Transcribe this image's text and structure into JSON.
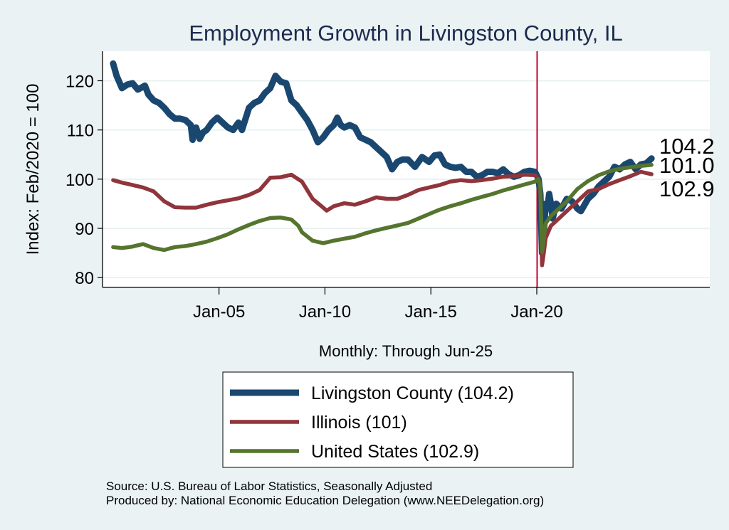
{
  "chart_data": {
    "type": "line",
    "title": "Employment Growth in Livingston  County, IL",
    "xlabel": "Monthly: Through Jun-25",
    "ylabel": "Index: Feb/2020 = 100",
    "ylim": [
      78,
      126
    ],
    "xlim": [
      "1999-07",
      "2028-03"
    ],
    "yticks": [
      80,
      90,
      100,
      110,
      120
    ],
    "xticks": [
      {
        "date": "2005-01",
        "label": "Jan-05"
      },
      {
        "date": "2010-01",
        "label": "Jan-10"
      },
      {
        "date": "2015-01",
        "label": "Jan-15"
      },
      {
        "date": "2020-01",
        "label": "Jan-20"
      }
    ],
    "grid": "horizontal",
    "reference_line": {
      "date": "2020-02",
      "color": "#c10534"
    },
    "legend_position": "bottom",
    "series": [
      {
        "name": "Livingston  County (104.2)",
        "color": "#1a476f",
        "end_label": "104.2",
        "points": [
          [
            "2000-01",
            123.5
          ],
          [
            "2000-03",
            121
          ],
          [
            "2000-06",
            118.5
          ],
          [
            "2000-09",
            119.2
          ],
          [
            "2000-12",
            119.5
          ],
          [
            "2001-03",
            118.2
          ],
          [
            "2001-07",
            119
          ],
          [
            "2001-09",
            117.2
          ],
          [
            "2001-12",
            116
          ],
          [
            "2002-03",
            115.5
          ],
          [
            "2002-06",
            114.5
          ],
          [
            "2002-09",
            113.2
          ],
          [
            "2002-12",
            112.3
          ],
          [
            "2003-03",
            112.3
          ],
          [
            "2003-06",
            112
          ],
          [
            "2003-09",
            111
          ],
          [
            "2003-10",
            108
          ],
          [
            "2003-11",
            110.2
          ],
          [
            "2003-12",
            110.5
          ],
          [
            "2004-02",
            108.2
          ],
          [
            "2004-04",
            109.5
          ],
          [
            "2004-06",
            110
          ],
          [
            "2004-09",
            111.5
          ],
          [
            "2004-12",
            112.5
          ],
          [
            "2005-03",
            111.5
          ],
          [
            "2005-06",
            110.5
          ],
          [
            "2005-09",
            110
          ],
          [
            "2005-12",
            111.5
          ],
          [
            "2006-02",
            110
          ],
          [
            "2006-06",
            114.5
          ],
          [
            "2006-09",
            115.5
          ],
          [
            "2006-12",
            116
          ],
          [
            "2007-03",
            117.5
          ],
          [
            "2007-06",
            118.5
          ],
          [
            "2007-09",
            121
          ],
          [
            "2007-12",
            119.8
          ],
          [
            "2008-03",
            119.5
          ],
          [
            "2008-06",
            116
          ],
          [
            "2008-09",
            115
          ],
          [
            "2008-12",
            113.5
          ],
          [
            "2009-03",
            112
          ],
          [
            "2009-06",
            110
          ],
          [
            "2009-09",
            107.5
          ],
          [
            "2009-12",
            108.5
          ],
          [
            "2010-03",
            110
          ],
          [
            "2010-06",
            111
          ],
          [
            "2010-08",
            112.5
          ],
          [
            "2010-10",
            111
          ],
          [
            "2010-12",
            110.5
          ],
          [
            "2011-03",
            111
          ],
          [
            "2011-06",
            110.5
          ],
          [
            "2011-09",
            108.5
          ],
          [
            "2011-12",
            108
          ],
          [
            "2012-03",
            107.5
          ],
          [
            "2012-06",
            106.5
          ],
          [
            "2012-09",
            105.5
          ],
          [
            "2012-12",
            104.5
          ],
          [
            "2013-03",
            102
          ],
          [
            "2013-06",
            103.5
          ],
          [
            "2013-09",
            104
          ],
          [
            "2013-12",
            104
          ],
          [
            "2014-04",
            102.5
          ],
          [
            "2014-08",
            104.5
          ],
          [
            "2014-12",
            103.5
          ],
          [
            "2015-03",
            104.8
          ],
          [
            "2015-06",
            105
          ],
          [
            "2015-09",
            103
          ],
          [
            "2015-12",
            102.5
          ],
          [
            "2016-03",
            102.3
          ],
          [
            "2016-06",
            102.5
          ],
          [
            "2016-09",
            101.5
          ],
          [
            "2016-12",
            101.5
          ],
          [
            "2017-03",
            100.5
          ],
          [
            "2017-06",
            100.8
          ],
          [
            "2017-09",
            101.5
          ],
          [
            "2017-12",
            101.5
          ],
          [
            "2018-03",
            101.2
          ],
          [
            "2018-06",
            102
          ],
          [
            "2018-09",
            101
          ],
          [
            "2018-12",
            100.5
          ],
          [
            "2019-03",
            100.8
          ],
          [
            "2019-06",
            101.5
          ],
          [
            "2019-09",
            101.7
          ],
          [
            "2019-12",
            101.5
          ],
          [
            "2020-02",
            100
          ],
          [
            "2020-03",
            97
          ],
          [
            "2020-04",
            85
          ],
          [
            "2020-05",
            89
          ],
          [
            "2020-06",
            95
          ],
          [
            "2020-07",
            94
          ],
          [
            "2020-08",
            97
          ],
          [
            "2020-09",
            95
          ],
          [
            "2020-10",
            92
          ],
          [
            "2020-12",
            95
          ],
          [
            "2021-03",
            94
          ],
          [
            "2021-06",
            96
          ],
          [
            "2021-09",
            95.5
          ],
          [
            "2021-12",
            94
          ],
          [
            "2022-02",
            93.5
          ],
          [
            "2022-06",
            96
          ],
          [
            "2022-09",
            97
          ],
          [
            "2022-12",
            98.5
          ],
          [
            "2023-03",
            99.5
          ],
          [
            "2023-06",
            100.5
          ],
          [
            "2023-09",
            102.5
          ],
          [
            "2023-12",
            102
          ],
          [
            "2024-03",
            103
          ],
          [
            "2024-06",
            103.5
          ],
          [
            "2024-09",
            102
          ],
          [
            "2024-12",
            103
          ],
          [
            "2025-03",
            103.2
          ],
          [
            "2025-06",
            104.2
          ]
        ]
      },
      {
        "name": "Illinois (101)",
        "color": "#90353b",
        "end_label": "101.0",
        "points": [
          [
            "2000-01",
            99.8
          ],
          [
            "2000-06",
            99.3
          ],
          [
            "2000-12",
            98.8
          ],
          [
            "2001-06",
            98.3
          ],
          [
            "2001-12",
            97.5
          ],
          [
            "2002-06",
            95.5
          ],
          [
            "2002-12",
            94.3
          ],
          [
            "2003-06",
            94.2
          ],
          [
            "2003-12",
            94.2
          ],
          [
            "2004-06",
            94.8
          ],
          [
            "2004-12",
            95.3
          ],
          [
            "2005-06",
            95.7
          ],
          [
            "2005-12",
            96.1
          ],
          [
            "2006-06",
            96.8
          ],
          [
            "2006-12",
            97.8
          ],
          [
            "2007-06",
            100.3
          ],
          [
            "2007-12",
            100.4
          ],
          [
            "2008-06",
            100.9
          ],
          [
            "2008-12",
            99.5
          ],
          [
            "2009-06",
            96
          ],
          [
            "2009-12",
            94.2
          ],
          [
            "2010-02",
            93.6
          ],
          [
            "2010-06",
            94.5
          ],
          [
            "2010-12",
            95.1
          ],
          [
            "2011-06",
            94.8
          ],
          [
            "2011-12",
            95.5
          ],
          [
            "2012-06",
            96.3
          ],
          [
            "2012-12",
            96
          ],
          [
            "2013-06",
            96
          ],
          [
            "2013-12",
            96.8
          ],
          [
            "2014-06",
            97.8
          ],
          [
            "2014-12",
            98.3
          ],
          [
            "2015-06",
            98.8
          ],
          [
            "2015-12",
            99.5
          ],
          [
            "2016-06",
            99.8
          ],
          [
            "2016-12",
            99.6
          ],
          [
            "2017-06",
            99.8
          ],
          [
            "2017-12",
            100.1
          ],
          [
            "2018-06",
            100.5
          ],
          [
            "2018-12",
            100.6
          ],
          [
            "2019-06",
            100.9
          ],
          [
            "2019-12",
            100.8
          ],
          [
            "2020-02",
            100
          ],
          [
            "2020-03",
            97
          ],
          [
            "2020-04",
            82.5
          ],
          [
            "2020-05",
            85
          ],
          [
            "2020-06",
            88
          ],
          [
            "2020-09",
            90.5
          ],
          [
            "2020-12",
            91.5
          ],
          [
            "2021-06",
            93.5
          ],
          [
            "2021-12",
            95.5
          ],
          [
            "2022-06",
            97.5
          ],
          [
            "2022-12",
            98
          ],
          [
            "2023-06",
            99
          ],
          [
            "2023-12",
            99.8
          ],
          [
            "2024-06",
            100.6
          ],
          [
            "2024-12",
            101.5
          ],
          [
            "2025-06",
            101.0
          ]
        ]
      },
      {
        "name": "United States (102.9)",
        "color": "#55752f",
        "end_label": "102.9",
        "points": [
          [
            "2000-01",
            86.2
          ],
          [
            "2000-06",
            86
          ],
          [
            "2000-12",
            86.3
          ],
          [
            "2001-06",
            86.8
          ],
          [
            "2001-12",
            86
          ],
          [
            "2002-06",
            85.6
          ],
          [
            "2002-12",
            86.2
          ],
          [
            "2003-06",
            86.4
          ],
          [
            "2003-12",
            86.8
          ],
          [
            "2004-06",
            87.3
          ],
          [
            "2004-12",
            88
          ],
          [
            "2005-06",
            88.8
          ],
          [
            "2005-12",
            89.8
          ],
          [
            "2006-06",
            90.7
          ],
          [
            "2006-12",
            91.5
          ],
          [
            "2007-06",
            92.1
          ],
          [
            "2007-12",
            92.2
          ],
          [
            "2008-06",
            91.8
          ],
          [
            "2008-10",
            90.5
          ],
          [
            "2008-12",
            89.2
          ],
          [
            "2009-06",
            87.5
          ],
          [
            "2009-12",
            87
          ],
          [
            "2010-06",
            87.5
          ],
          [
            "2010-12",
            87.9
          ],
          [
            "2011-06",
            88.3
          ],
          [
            "2011-12",
            89
          ],
          [
            "2012-06",
            89.6
          ],
          [
            "2012-12",
            90.1
          ],
          [
            "2013-06",
            90.6
          ],
          [
            "2013-12",
            91.1
          ],
          [
            "2014-06",
            92
          ],
          [
            "2014-12",
            92.9
          ],
          [
            "2015-06",
            93.8
          ],
          [
            "2015-12",
            94.5
          ],
          [
            "2016-06",
            95.1
          ],
          [
            "2016-12",
            95.8
          ],
          [
            "2017-06",
            96.4
          ],
          [
            "2017-12",
            97
          ],
          [
            "2018-06",
            97.7
          ],
          [
            "2018-12",
            98.3
          ],
          [
            "2019-06",
            98.9
          ],
          [
            "2019-12",
            99.5
          ],
          [
            "2020-02",
            100
          ],
          [
            "2020-03",
            98.5
          ],
          [
            "2020-04",
            85.2
          ],
          [
            "2020-05",
            88
          ],
          [
            "2020-06",
            91
          ],
          [
            "2020-09",
            92.5
          ],
          [
            "2020-12",
            93.5
          ],
          [
            "2021-06",
            95.5
          ],
          [
            "2021-12",
            98
          ],
          [
            "2022-06",
            99.6
          ],
          [
            "2022-12",
            100.8
          ],
          [
            "2023-06",
            101.6
          ],
          [
            "2023-12",
            102.1
          ],
          [
            "2024-06",
            102.4
          ],
          [
            "2024-12",
            102.7
          ],
          [
            "2025-06",
            102.9
          ]
        ]
      }
    ],
    "source_note": "Source: U.S. Bureau of Labor Statistics, Seasonally Adjusted",
    "producer_note": "Produced by: National Economic Education Delegation (www.NEEDelegation.org)"
  }
}
